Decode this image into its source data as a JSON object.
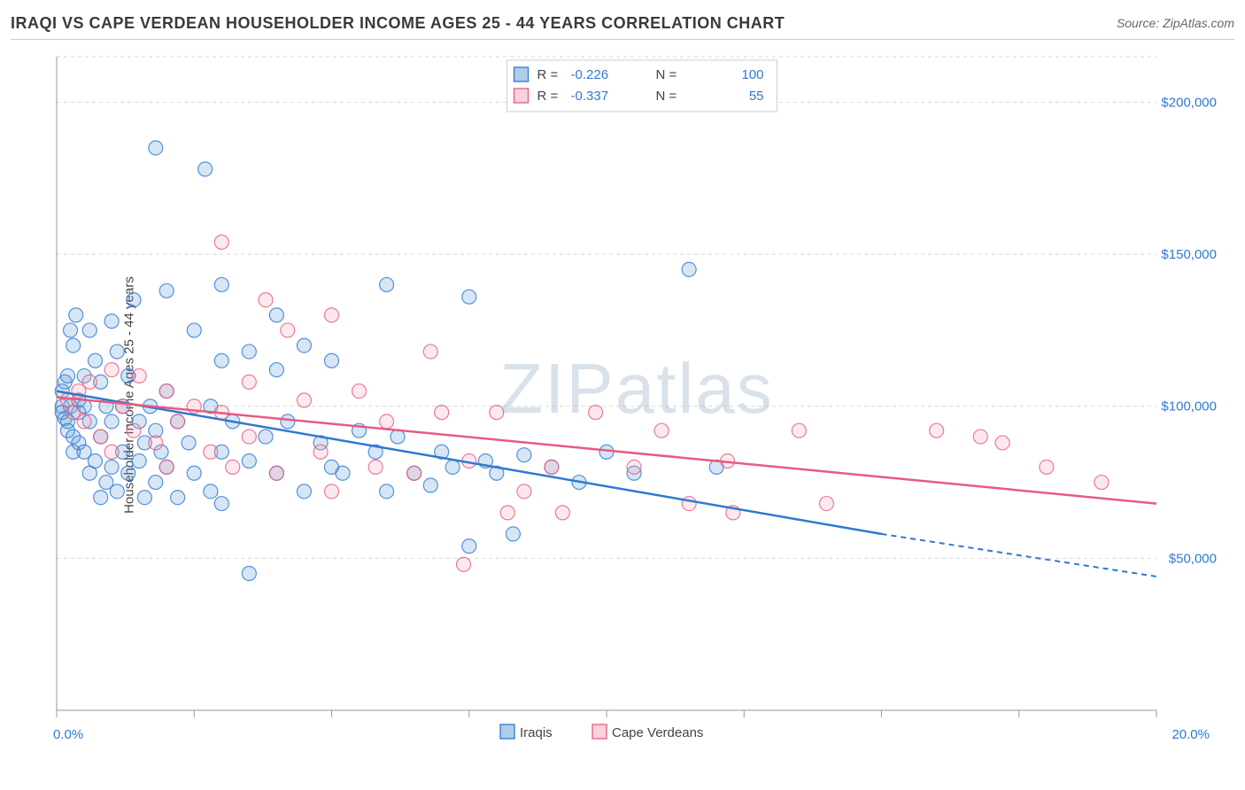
{
  "header": {
    "title": "IRAQI VS CAPE VERDEAN HOUSEHOLDER INCOME AGES 25 - 44 YEARS CORRELATION CHART",
    "source": "Source: ZipAtlas.com"
  },
  "watermark": "ZIPatlas",
  "chart": {
    "type": "scatter",
    "y_axis_label": "Householder Income Ages 25 - 44 years",
    "background_color": "#ffffff",
    "grid_color": "#d9d9d9",
    "axis_color": "#999999",
    "tick_color": "#999999",
    "xlim": [
      0,
      20
    ],
    "ylim": [
      0,
      215000
    ],
    "x_ticks": [
      0,
      2.5,
      5,
      7.5,
      10,
      12.5,
      15,
      17.5,
      20
    ],
    "x_tick_labels_shown": {
      "0": "0.0%",
      "20": "20.0%"
    },
    "x_label_color": "#2e78d2",
    "x_label_fontsize": 15,
    "y_ticks": [
      50000,
      100000,
      150000,
      200000
    ],
    "y_tick_labels": [
      "$50,000",
      "$100,000",
      "$150,000",
      "$200,000"
    ],
    "y_label_color": "#2e78d2",
    "y_label_fontsize": 15,
    "gridline_dash": "4,4",
    "marker_radius": 8,
    "marker_fill_opacity": 0.25,
    "marker_stroke_width": 1.2,
    "series": [
      {
        "name": "Iraqis",
        "color": "#5b9bd5",
        "stroke_color": "#2e78d2",
        "r_value": "-0.226",
        "n_value": "100",
        "trend": {
          "x1": 0,
          "y1": 105000,
          "x2": 15,
          "y2": 58000,
          "dash_from_x": 15,
          "dash_to_x": 20,
          "dash_to_y": 44000
        },
        "points": [
          [
            0.1,
            100000
          ],
          [
            0.1,
            98000
          ],
          [
            0.1,
            105000
          ],
          [
            0.15,
            108000
          ],
          [
            0.15,
            96000
          ],
          [
            0.2,
            110000
          ],
          [
            0.2,
            95000
          ],
          [
            0.2,
            92000
          ],
          [
            0.25,
            125000
          ],
          [
            0.25,
            100000
          ],
          [
            0.3,
            120000
          ],
          [
            0.3,
            90000
          ],
          [
            0.3,
            85000
          ],
          [
            0.35,
            130000
          ],
          [
            0.4,
            98000
          ],
          [
            0.4,
            88000
          ],
          [
            0.4,
            102000
          ],
          [
            0.5,
            110000
          ],
          [
            0.5,
            100000
          ],
          [
            0.5,
            85000
          ],
          [
            0.6,
            125000
          ],
          [
            0.6,
            95000
          ],
          [
            0.6,
            78000
          ],
          [
            0.7,
            115000
          ],
          [
            0.7,
            82000
          ],
          [
            0.8,
            108000
          ],
          [
            0.8,
            90000
          ],
          [
            0.8,
            70000
          ],
          [
            0.9,
            100000
          ],
          [
            0.9,
            75000
          ],
          [
            1.0,
            128000
          ],
          [
            1.0,
            95000
          ],
          [
            1.0,
            80000
          ],
          [
            1.1,
            118000
          ],
          [
            1.1,
            72000
          ],
          [
            1.2,
            100000
          ],
          [
            1.2,
            85000
          ],
          [
            1.3,
            110000
          ],
          [
            1.3,
            78000
          ],
          [
            1.4,
            135000
          ],
          [
            1.5,
            95000
          ],
          [
            1.5,
            82000
          ],
          [
            1.6,
            88000
          ],
          [
            1.6,
            70000
          ],
          [
            1.7,
            100000
          ],
          [
            1.8,
            185000
          ],
          [
            1.8,
            92000
          ],
          [
            1.8,
            75000
          ],
          [
            1.9,
            85000
          ],
          [
            2.0,
            138000
          ],
          [
            2.0,
            105000
          ],
          [
            2.0,
            80000
          ],
          [
            2.2,
            95000
          ],
          [
            2.2,
            70000
          ],
          [
            2.4,
            88000
          ],
          [
            2.5,
            125000
          ],
          [
            2.5,
            78000
          ],
          [
            2.7,
            178000
          ],
          [
            2.8,
            100000
          ],
          [
            2.8,
            72000
          ],
          [
            3.0,
            140000
          ],
          [
            3.0,
            115000
          ],
          [
            3.0,
            85000
          ],
          [
            3.0,
            68000
          ],
          [
            3.2,
            95000
          ],
          [
            3.5,
            118000
          ],
          [
            3.5,
            82000
          ],
          [
            3.5,
            45000
          ],
          [
            3.8,
            90000
          ],
          [
            4.0,
            130000
          ],
          [
            4.0,
            112000
          ],
          [
            4.0,
            78000
          ],
          [
            4.2,
            95000
          ],
          [
            4.5,
            120000
          ],
          [
            4.5,
            72000
          ],
          [
            4.8,
            88000
          ],
          [
            5.0,
            115000
          ],
          [
            5.0,
            80000
          ],
          [
            5.2,
            78000
          ],
          [
            5.5,
            92000
          ],
          [
            5.8,
            85000
          ],
          [
            6.0,
            140000
          ],
          [
            6.0,
            72000
          ],
          [
            6.2,
            90000
          ],
          [
            6.5,
            78000
          ],
          [
            6.8,
            74000
          ],
          [
            7.0,
            85000
          ],
          [
            7.2,
            80000
          ],
          [
            7.5,
            136000
          ],
          [
            7.5,
            54000
          ],
          [
            7.8,
            82000
          ],
          [
            8.0,
            78000
          ],
          [
            8.3,
            58000
          ],
          [
            8.5,
            84000
          ],
          [
            9.0,
            80000
          ],
          [
            9.5,
            75000
          ],
          [
            10.0,
            85000
          ],
          [
            10.5,
            78000
          ],
          [
            11.5,
            145000
          ],
          [
            12.0,
            80000
          ]
        ]
      },
      {
        "name": "Cape Verdeans",
        "color": "#f4a6b8",
        "stroke_color": "#e85a7f",
        "r_value": "-0.337",
        "n_value": "55",
        "trend": {
          "x1": 0,
          "y1": 103000,
          "x2": 20,
          "y2": 68000
        },
        "points": [
          [
            0.2,
            102000
          ],
          [
            0.3,
            98000
          ],
          [
            0.4,
            105000
          ],
          [
            0.5,
            95000
          ],
          [
            0.6,
            108000
          ],
          [
            0.8,
            90000
          ],
          [
            1.0,
            112000
          ],
          [
            1.0,
            85000
          ],
          [
            1.2,
            100000
          ],
          [
            1.4,
            92000
          ],
          [
            1.5,
            110000
          ],
          [
            1.8,
            88000
          ],
          [
            2.0,
            105000
          ],
          [
            2.0,
            80000
          ],
          [
            2.2,
            95000
          ],
          [
            2.5,
            100000
          ],
          [
            2.8,
            85000
          ],
          [
            3.0,
            154000
          ],
          [
            3.0,
            98000
          ],
          [
            3.2,
            80000
          ],
          [
            3.5,
            108000
          ],
          [
            3.5,
            90000
          ],
          [
            3.8,
            135000
          ],
          [
            4.0,
            78000
          ],
          [
            4.2,
            125000
          ],
          [
            4.5,
            102000
          ],
          [
            4.8,
            85000
          ],
          [
            5.0,
            130000
          ],
          [
            5.0,
            72000
          ],
          [
            5.5,
            105000
          ],
          [
            5.8,
            80000
          ],
          [
            6.0,
            95000
          ],
          [
            6.5,
            78000
          ],
          [
            6.8,
            118000
          ],
          [
            7.0,
            98000
          ],
          [
            7.4,
            48000
          ],
          [
            7.5,
            82000
          ],
          [
            8.0,
            98000
          ],
          [
            8.2,
            65000
          ],
          [
            8.5,
            72000
          ],
          [
            9.0,
            80000
          ],
          [
            9.2,
            65000
          ],
          [
            9.8,
            98000
          ],
          [
            10.5,
            80000
          ],
          [
            11.0,
            92000
          ],
          [
            11.5,
            68000
          ],
          [
            12.2,
            82000
          ],
          [
            12.3,
            65000
          ],
          [
            13.5,
            92000
          ],
          [
            14.0,
            68000
          ],
          [
            16.0,
            92000
          ],
          [
            16.8,
            90000
          ],
          [
            17.2,
            88000
          ],
          [
            18.0,
            80000
          ],
          [
            19.0,
            75000
          ]
        ]
      }
    ],
    "top_legend": {
      "box_border": "#cccccc",
      "swatch_size": 16,
      "font_size": 15,
      "r_label": "R =",
      "n_label": "N =",
      "value_color": "#2e78d2"
    },
    "bottom_legend": {
      "font_size": 15,
      "swatch_size": 16
    }
  }
}
